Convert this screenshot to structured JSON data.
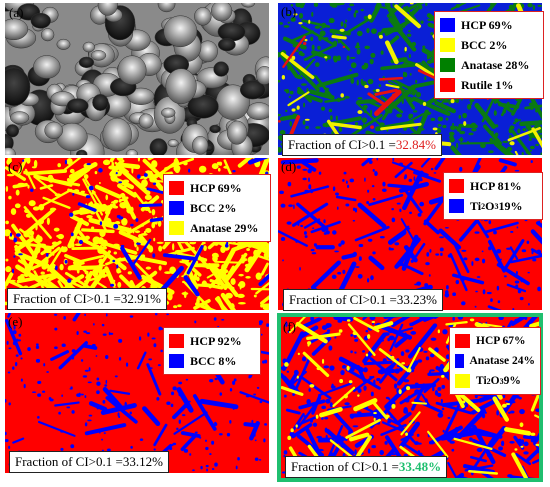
{
  "panels": [
    {
      "label": "(a)"
    },
    {
      "label": "(b)",
      "legend": [
        {
          "text": "HCP 69%",
          "color": "#0000ff"
        },
        {
          "text": "BCC 2%",
          "color": "#ffff00"
        },
        {
          "text": "Anatase 28%",
          "color": "#008000"
        },
        {
          "text": "Rutile 1%",
          "color": "#ff0000"
        }
      ],
      "fraction_prefix": "Fraction of CI>0.1 =",
      "fraction_value": "32.84%"
    },
    {
      "label": "(c)",
      "legend": [
        {
          "text": "HCP 69%",
          "color": "#ff0000"
        },
        {
          "text": "BCC 2%",
          "color": "#0000ff"
        },
        {
          "text": "Anatase 29%",
          "color": "#ffff00"
        }
      ],
      "fraction_prefix": "Fraction of CI>0.1 =",
      "fraction_value": "32.91%"
    },
    {
      "label": "(d)",
      "legend": [
        {
          "text": "HCP 81%",
          "color": "#ff0000"
        },
        {
          "text_a": "Ti",
          "sub1": "2",
          "text_b": "O",
          "sub2": "3",
          "text_c": " 19%",
          "color": "#0000ff"
        }
      ],
      "fraction_prefix": "Fraction of CI>0.1 =",
      "fraction_value": "33.23%"
    },
    {
      "label": "(e)",
      "legend": [
        {
          "text": "HCP 92%",
          "color": "#ff0000"
        },
        {
          "text": "BCC 8%",
          "color": "#0000ff"
        }
      ],
      "fraction_prefix": "Fraction of CI>0.1 =",
      "fraction_value": "33.12%"
    },
    {
      "label": "(f)",
      "legend": [
        {
          "text": "HCP 67%",
          "color": "#ff0000"
        },
        {
          "text": "Anatase 24%",
          "color": "#0000ff"
        },
        {
          "text_a": "Ti",
          "sub1": "2",
          "text_b": "O",
          "sub2": "3",
          "text_c": " 9%",
          "color": "#ffff00"
        }
      ],
      "fraction_prefix": "Fraction of CI>0.1 =",
      "fraction_value": "33.48%",
      "frame_color": "#1fbf6f"
    }
  ]
}
